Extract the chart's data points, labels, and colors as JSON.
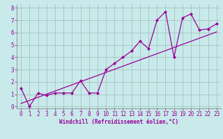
{
  "xlabel": "Windchill (Refroidissement éolien,°C)",
  "background_color": "#c8eaea",
  "grid_color": "#9fbbbb",
  "line_color": "#990099",
  "xlim_min": -0.5,
  "xlim_max": 23.5,
  "ylim_min": -0.15,
  "ylim_max": 8.3,
  "xticks": [
    0,
    1,
    2,
    3,
    4,
    5,
    6,
    7,
    8,
    9,
    10,
    11,
    12,
    13,
    14,
    15,
    16,
    17,
    18,
    19,
    20,
    21,
    22,
    23
  ],
  "yticks": [
    0,
    1,
    2,
    3,
    4,
    5,
    6,
    7,
    8
  ],
  "data_x": [
    0,
    1,
    2,
    3,
    4,
    5,
    6,
    7,
    8,
    9,
    10,
    11,
    12,
    13,
    14,
    15,
    16,
    17,
    18,
    19,
    20,
    21,
    22,
    23
  ],
  "data_y": [
    1.5,
    0.0,
    1.1,
    0.9,
    1.1,
    1.1,
    1.1,
    2.1,
    1.1,
    1.1,
    3.0,
    3.5,
    4.0,
    4.5,
    5.3,
    4.7,
    7.0,
    7.7,
    4.0,
    7.2,
    7.5,
    6.2,
    6.3,
    6.7
  ],
  "trend_x": [
    0,
    23
  ],
  "trend_y": [
    0.25,
    6.05
  ],
  "tick_fontsize": 5.5,
  "xlabel_fontsize": 5.5,
  "marker_size": 2.5
}
